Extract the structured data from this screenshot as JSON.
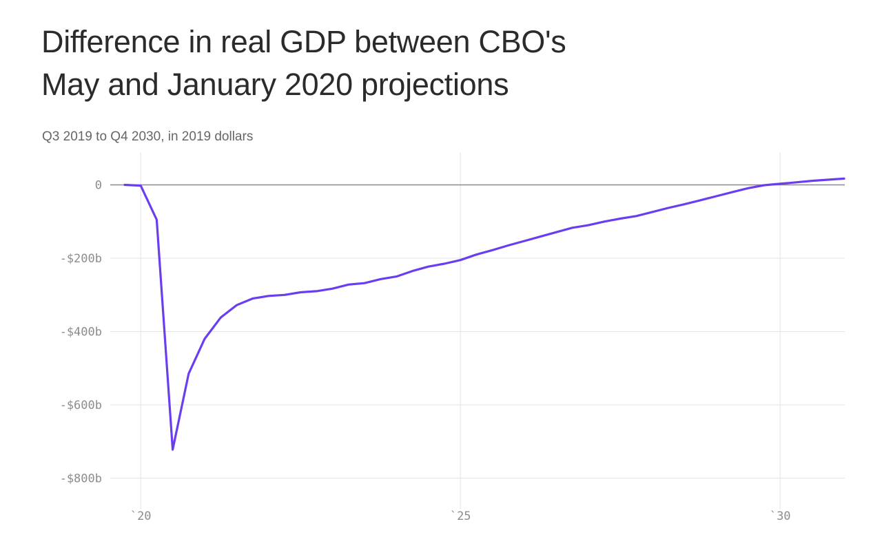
{
  "title_line1": "Difference in real GDP between CBO's",
  "title_line2": "May and January 2020 projections",
  "subtitle": "Q3 2019 to Q4 2030, in 2019 dollars",
  "chart_data": {
    "type": "line",
    "title": "Difference in real GDP between CBO's May and January 2020 projections",
    "subtitle": "Q3 2019 to Q4 2030, in 2019 dollars",
    "xlabel": "",
    "ylabel": "",
    "x_unit": "year (quarterly observations)",
    "y_unit": "billions of 2019 dollars",
    "xlim": [
      2019.1,
      2031.0
    ],
    "ylim": [
      -880,
      0
    ],
    "x_ticks": [
      {
        "value": 2020,
        "label": "`20"
      },
      {
        "value": 2025,
        "label": "`25"
      },
      {
        "value": 2030,
        "label": "`30"
      }
    ],
    "y_ticks": [
      {
        "value": 0,
        "label": "0"
      },
      {
        "value": -200,
        "label": "-$200b"
      },
      {
        "value": -400,
        "label": "-$400b"
      },
      {
        "value": -600,
        "label": "-$600b"
      },
      {
        "value": -800,
        "label": "-$800b"
      }
    ],
    "grid": true,
    "legend": "none",
    "colors": {
      "line": "#6a3dee",
      "grid": "#e3e3e3",
      "zero_line": "#8a8a8a",
      "title": "#2b2b2b",
      "subtitle": "#666666",
      "tick": "#8c8c8c"
    },
    "series": [
      {
        "x": [
          2019.75,
          2020.0,
          2020.25,
          2020.5,
          2020.75,
          2021.0,
          2021.25,
          2021.5,
          2021.75,
          2022.0,
          2022.25,
          2022.5,
          2022.75,
          2023.0,
          2023.25,
          2023.5,
          2023.75,
          2024.0,
          2024.25,
          2024.5,
          2024.75,
          2025.0,
          2025.25,
          2025.5,
          2025.75,
          2026.0,
          2026.25,
          2026.5,
          2026.75,
          2027.0,
          2027.25,
          2027.5,
          2027.75,
          2028.0,
          2028.25,
          2028.5,
          2028.75,
          2029.0,
          2029.25,
          2029.5,
          2029.75,
          2030.0,
          2030.25,
          2030.5,
          2030.75,
          2031.0
        ],
        "values": [
          0,
          -2,
          -95,
          -722,
          -515,
          -420,
          -362,
          -328,
          -310,
          -303,
          -300,
          -293,
          -290,
          -283,
          -272,
          -268,
          -257,
          -250,
          -235,
          -223,
          -215,
          -205,
          -190,
          -178,
          -165,
          -153,
          -141,
          -129,
          -117,
          -110,
          -100,
          -92,
          -85,
          -74,
          -63,
          -53,
          -42,
          -31,
          -20,
          -9,
          -1,
          3,
          7,
          11,
          14,
          17
        ]
      }
    ]
  }
}
